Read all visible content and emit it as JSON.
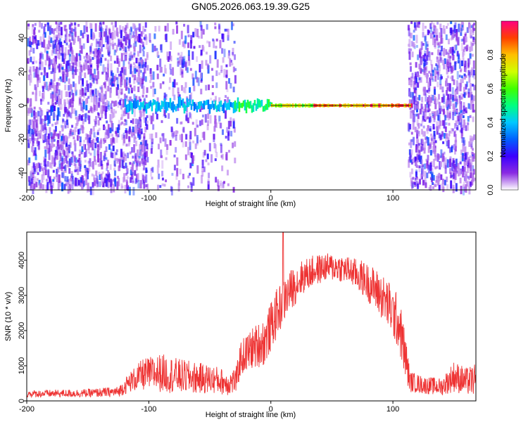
{
  "figure_title": "GN05.2026.063.19.39.G25",
  "chart_data": [
    {
      "type": "heatmap",
      "xlabel": "Height of straight line (km)",
      "ylabel": "Frequency (Hz)",
      "xlim": [
        -200,
        168
      ],
      "ylim": [
        -50,
        50
      ],
      "xticks": [
        -200,
        -100,
        0,
        100
      ],
      "yticks": [
        -40,
        -20,
        0,
        20,
        40
      ],
      "grid": false,
      "colorbar": {
        "label": "Normalized spectral amplitude",
        "range": [
          0,
          1
        ],
        "ticks": [
          "0.0",
          "0.2",
          "0.4",
          "0.6",
          "0.8"
        ],
        "colormap": [
          "#ffffff",
          "#8a2be2",
          "#3b00ff",
          "#0060ff",
          "#00c8ff",
          "#00ff80",
          "#40ff00",
          "#d0ff00",
          "#ffc000",
          "#ff4000",
          "#ff0080"
        ]
      },
      "ridge": {
        "frequency_hz": 0,
        "segments": [
          {
            "x_start": -120,
            "x_end": -30,
            "amplitude": 0.4
          },
          {
            "x_start": -30,
            "x_end": 0,
            "amplitude": 0.55
          },
          {
            "x_start": 0,
            "x_end": 35,
            "amplitude": 0.75
          },
          {
            "x_start": 35,
            "x_end": 115,
            "amplitude": 0.9
          }
        ]
      },
      "noise_regions": [
        {
          "x_start": -200,
          "x_end": -100,
          "density": 0.85
        },
        {
          "x_start": -100,
          "x_end": -28,
          "density": 0.3
        },
        {
          "x_start": 112,
          "x_end": 168,
          "density": 0.85
        }
      ]
    },
    {
      "type": "line",
      "xlabel": "Height of straight line (km)",
      "ylabel": "SNR (10 * v/v)",
      "xlim": [
        -200,
        168
      ],
      "ylim": [
        0,
        4800
      ],
      "xticks": [
        -200,
        -100,
        0,
        100
      ],
      "yticks": [
        0,
        1000,
        2000,
        3000,
        4000
      ],
      "grid": false,
      "series": [
        {
          "color": "#ee3333",
          "envelope": {
            "x": [
              -200,
              -150,
              -125,
              -115,
              -105,
              -90,
              -75,
              -60,
              -45,
              -35,
              -28,
              -25,
              -15,
              -5,
              5,
              15,
              25,
              35,
              45,
              55,
              65,
              75,
              85,
              95,
              105,
              110,
              114,
              125,
              140,
              150,
              160,
              168
            ],
            "center": [
              200,
              220,
              260,
              550,
              750,
              800,
              700,
              650,
              600,
              500,
              600,
              1200,
              1500,
              1700,
              2500,
              3100,
              3500,
              3700,
              3800,
              3800,
              3700,
              3500,
              3200,
              2800,
              2200,
              1300,
              550,
              450,
              400,
              700,
              550,
              600
            ],
            "spread": [
              100,
              120,
              150,
              300,
              450,
              550,
              500,
              450,
              400,
              350,
              400,
              500,
              600,
              700,
              700,
              600,
              500,
              450,
              400,
              400,
              400,
              500,
              600,
              700,
              800,
              700,
              300,
              250,
              250,
              450,
              400,
              450
            ]
          },
          "peak": {
            "x": 10,
            "y": 4800
          }
        }
      ]
    }
  ]
}
